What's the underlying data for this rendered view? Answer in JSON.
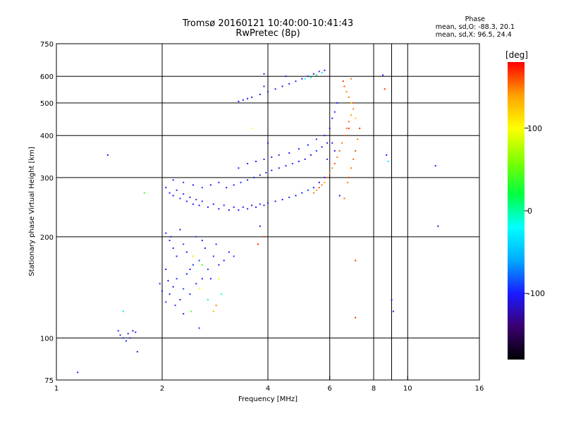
{
  "title": {
    "line1": "Tromsø 20160121 10:40:00-10:41:43",
    "line2": "RwPretec (8p)"
  },
  "phase_stats": {
    "header": "Phase",
    "line_o": "mean, sd,O: -88.3, 20.1",
    "line_x": "mean, sd,X:  96.5, 24.4"
  },
  "chart_data": {
    "type": "scatter",
    "title": "Tromsø 20160121 10:40:00-10:41:43",
    "subtitle": "RwPretec (8p)",
    "xlabel": "Frequency [MHz]",
    "ylabel": "Stationary phase Virtual Height [km]",
    "x_scale": "log",
    "y_scale": "log",
    "xlim": [
      1,
      16
    ],
    "ylim": [
      75,
      750
    ],
    "x_ticks": [
      1,
      2,
      4,
      6,
      8,
      10,
      16
    ],
    "x_tick_labels": [
      "1",
      "2",
      "4",
      "6",
      "8",
      "10",
      "16"
    ],
    "x_gridlines": [
      2,
      4,
      6,
      8,
      9,
      10,
      16
    ],
    "y_ticks": [
      75,
      100,
      200,
      300,
      400,
      500,
      600,
      750
    ],
    "y_tick_labels": [
      "75",
      "100",
      "200",
      "300",
      "400",
      "500",
      "600",
      "750"
    ],
    "grid": true,
    "colorbar": {
      "label": "[deg]",
      "min": -180,
      "max": 180,
      "ticks": [
        100,
        0,
        -100
      ],
      "tick_labels": [
        "100",
        "0",
        "-100"
      ],
      "colormap": [
        "#000000",
        "#3b0070",
        "#1a1aff",
        "#00aaff",
        "#00ffff",
        "#00ff40",
        "#80ff00",
        "#ffff00",
        "#ffa000",
        "#ff0000"
      ]
    },
    "series": [
      {
        "points": [
          [
            2.05,
            128,
            -95
          ],
          [
            2.1,
            135,
            -100
          ],
          [
            2.15,
            142,
            -110
          ],
          [
            2.2,
            150,
            -95
          ],
          [
            2.05,
            160,
            -105
          ],
          [
            2.25,
            130,
            -100
          ],
          [
            2.3,
            140,
            -90
          ],
          [
            2.35,
            155,
            -100
          ],
          [
            2.4,
            135,
            -110
          ],
          [
            2.45,
            165,
            -95
          ],
          [
            2.5,
            145,
            -100
          ],
          [
            2.55,
            170,
            -85
          ],
          [
            2.6,
            150,
            -100
          ],
          [
            2.7,
            160,
            -90
          ],
          [
            2.8,
            175,
            -95
          ],
          [
            2.9,
            165,
            -100
          ],
          [
            3.0,
            170,
            -110
          ],
          [
            2.65,
            185,
            -95
          ],
          [
            2.2,
            175,
            -100
          ],
          [
            2.15,
            185,
            -95
          ],
          [
            2.3,
            190,
            -90
          ],
          [
            2.1,
            195,
            -100
          ],
          [
            2.35,
            180,
            -105
          ],
          [
            2.75,
            150,
            -100
          ],
          [
            2.05,
            205,
            -95
          ],
          [
            2.12,
            200,
            -100
          ],
          [
            2.25,
            210,
            -105
          ],
          [
            2.5,
            200,
            -90
          ],
          [
            2.6,
            195,
            -100
          ],
          [
            2.85,
            190,
            -95
          ],
          [
            3.1,
            180,
            -100
          ],
          [
            3.2,
            175,
            -90
          ],
          [
            1.97,
            145,
            -100
          ],
          [
            2.0,
            138,
            -95
          ],
          [
            2.08,
            148,
            -110
          ],
          [
            2.18,
            125,
            -95
          ],
          [
            2.42,
            120,
            40
          ],
          [
            2.55,
            140,
            100
          ],
          [
            2.7,
            130,
            -30
          ],
          [
            2.8,
            120,
            130
          ],
          [
            2.85,
            125,
            150
          ],
          [
            2.6,
            165,
            40
          ],
          [
            2.45,
            175,
            110
          ],
          [
            2.9,
            150,
            90
          ],
          [
            2.95,
            135,
            -10
          ],
          [
            2.55,
            107,
            -95
          ],
          [
            2.4,
            160,
            -100
          ],
          [
            2.3,
            118,
            -100
          ],
          [
            1.5,
            105,
            -100
          ],
          [
            1.55,
            100,
            -95
          ],
          [
            1.6,
            103,
            -100
          ],
          [
            1.65,
            105,
            -120
          ],
          [
            1.58,
            98,
            -100
          ],
          [
            1.52,
            102,
            -95
          ],
          [
            1.68,
            104,
            -100
          ],
          [
            1.62,
            100,
            -110
          ],
          [
            1.55,
            120,
            -30
          ],
          [
            1.7,
            91,
            -100
          ],
          [
            1.15,
            79,
            -100
          ],
          [
            1.4,
            350,
            -100
          ],
          [
            1.78,
            270,
            40
          ],
          [
            2.05,
            280,
            -100
          ],
          [
            2.1,
            270,
            -95
          ],
          [
            2.15,
            265,
            -110
          ],
          [
            2.2,
            275,
            -100
          ],
          [
            2.25,
            260,
            -90
          ],
          [
            2.3,
            268,
            -100
          ],
          [
            2.35,
            255,
            -95
          ],
          [
            2.4,
            262,
            -105
          ],
          [
            2.45,
            250,
            -100
          ],
          [
            2.5,
            258,
            -90
          ],
          [
            2.55,
            248,
            -100
          ],
          [
            2.6,
            255,
            -95
          ],
          [
            2.7,
            245,
            -100
          ],
          [
            2.8,
            250,
            -105
          ],
          [
            2.9,
            242,
            -100
          ],
          [
            3.0,
            248,
            -95
          ],
          [
            3.1,
            240,
            -110
          ],
          [
            3.2,
            245,
            -100
          ],
          [
            3.3,
            240,
            -105
          ],
          [
            3.4,
            245,
            -100
          ],
          [
            3.5,
            242,
            -95
          ],
          [
            3.6,
            248,
            -110
          ],
          [
            3.7,
            245,
            -100
          ],
          [
            3.8,
            250,
            -95
          ],
          [
            3.9,
            248,
            -105
          ],
          [
            4.0,
            252,
            -100
          ],
          [
            4.2,
            255,
            -110
          ],
          [
            4.4,
            258,
            -100
          ],
          [
            4.6,
            262,
            -95
          ],
          [
            4.8,
            265,
            -105
          ],
          [
            5.0,
            270,
            -100
          ],
          [
            5.2,
            275,
            -95
          ],
          [
            5.4,
            280,
            -100
          ],
          [
            5.6,
            290,
            -105
          ],
          [
            5.8,
            300,
            -100
          ],
          [
            2.15,
            295,
            -100
          ],
          [
            2.3,
            290,
            -95
          ],
          [
            2.45,
            285,
            -100
          ],
          [
            2.6,
            280,
            -90
          ],
          [
            2.75,
            285,
            -100
          ],
          [
            2.9,
            290,
            -95
          ],
          [
            3.05,
            280,
            -105
          ],
          [
            3.2,
            285,
            -100
          ],
          [
            3.35,
            290,
            -95
          ],
          [
            3.5,
            295,
            -100
          ],
          [
            3.65,
            300,
            -110
          ],
          [
            3.8,
            305,
            -100
          ],
          [
            3.95,
            310,
            -95
          ],
          [
            4.1,
            315,
            -100
          ],
          [
            4.3,
            320,
            -105
          ],
          [
            4.5,
            325,
            -100
          ],
          [
            4.7,
            330,
            -95
          ],
          [
            4.9,
            335,
            -100
          ],
          [
            5.1,
            340,
            -105
          ],
          [
            5.3,
            350,
            -100
          ],
          [
            5.5,
            360,
            -95
          ],
          [
            5.7,
            370,
            -100
          ],
          [
            5.9,
            380,
            -105
          ],
          [
            3.3,
            320,
            -100
          ],
          [
            3.5,
            330,
            -95
          ],
          [
            3.7,
            335,
            -100
          ],
          [
            3.9,
            340,
            -105
          ],
          [
            4.1,
            345,
            -100
          ],
          [
            4.3,
            350,
            -95
          ],
          [
            4.6,
            355,
            -100
          ],
          [
            4.9,
            365,
            -105
          ],
          [
            5.2,
            375,
            -100
          ],
          [
            5.5,
            390,
            -95
          ],
          [
            5.8,
            400,
            -100
          ],
          [
            6.0,
            420,
            -105
          ],
          [
            6.1,
            450,
            -100
          ],
          [
            6.2,
            470,
            -95
          ],
          [
            6.3,
            500,
            -100
          ],
          [
            6.1,
            380,
            -105
          ],
          [
            6.2,
            360,
            -100
          ],
          [
            5.9,
            340,
            -95
          ],
          [
            3.3,
            505,
            -100
          ],
          [
            3.4,
            510,
            -95
          ],
          [
            3.5,
            515,
            -100
          ],
          [
            3.6,
            520,
            -105
          ],
          [
            3.8,
            530,
            -100
          ],
          [
            4.0,
            540,
            -95
          ],
          [
            4.2,
            550,
            -100
          ],
          [
            4.4,
            560,
            -105
          ],
          [
            4.6,
            570,
            -100
          ],
          [
            4.8,
            580,
            -95
          ],
          [
            5.0,
            590,
            -100
          ],
          [
            5.2,
            600,
            -105
          ],
          [
            5.4,
            610,
            -100
          ],
          [
            5.6,
            620,
            -95
          ],
          [
            5.8,
            625,
            -100
          ],
          [
            5.3,
            595,
            0
          ],
          [
            5.5,
            605,
            20
          ],
          [
            5.7,
            615,
            -30
          ],
          [
            3.9,
            610,
            -100
          ],
          [
            4.5,
            600,
            -100
          ],
          [
            5.1,
            590,
            -20
          ],
          [
            5.4,
            270,
            150
          ],
          [
            5.5,
            275,
            140
          ],
          [
            5.6,
            280,
            160
          ],
          [
            5.7,
            285,
            150
          ],
          [
            5.8,
            290,
            140
          ],
          [
            5.9,
            300,
            155
          ],
          [
            6.0,
            310,
            150
          ],
          [
            6.1,
            320,
            145
          ],
          [
            6.2,
            330,
            160
          ],
          [
            6.3,
            345,
            150
          ],
          [
            6.4,
            360,
            155
          ],
          [
            6.5,
            380,
            150
          ],
          [
            6.6,
            400,
            160
          ],
          [
            6.7,
            420,
            150
          ],
          [
            6.8,
            440,
            155
          ],
          [
            6.9,
            460,
            140
          ],
          [
            7.0,
            480,
            150
          ],
          [
            6.9,
            500,
            130
          ],
          [
            6.8,
            520,
            150
          ],
          [
            6.7,
            540,
            145
          ],
          [
            6.6,
            560,
            160
          ],
          [
            6.55,
            580,
            170
          ],
          [
            6.9,
            590,
            150
          ],
          [
            6.8,
            300,
            165
          ],
          [
            6.9,
            320,
            150
          ],
          [
            7.0,
            340,
            155
          ],
          [
            7.1,
            360,
            160
          ],
          [
            7.2,
            390,
            150
          ],
          [
            7.3,
            420,
            170
          ],
          [
            7.1,
            450,
            120
          ],
          [
            7.0,
            500,
            160
          ],
          [
            6.6,
            260,
            155
          ],
          [
            6.75,
            290,
            150
          ],
          [
            8.5,
            605,
            -100
          ],
          [
            8.6,
            550,
            170
          ],
          [
            8.7,
            350,
            -100
          ],
          [
            8.8,
            335,
            -30
          ],
          [
            9.0,
            130,
            -110
          ],
          [
            9.1,
            120,
            -100
          ],
          [
            7.1,
            170,
            170
          ],
          [
            7.1,
            115,
            170
          ],
          [
            12.0,
            325,
            -100
          ],
          [
            12.2,
            215,
            -110
          ],
          [
            6.4,
            265,
            -100
          ],
          [
            6.8,
            420,
            170
          ],
          [
            3.9,
            200,
            170
          ],
          [
            3.8,
            215,
            -100
          ],
          [
            3.75,
            190,
            170
          ],
          [
            4.0,
            380,
            -100
          ],
          [
            3.6,
            420,
            100
          ],
          [
            3.9,
            560,
            -100
          ]
        ]
      }
    ]
  }
}
